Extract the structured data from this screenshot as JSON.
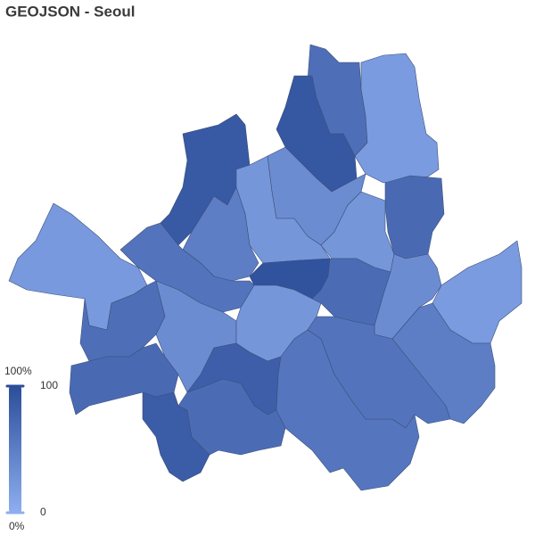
{
  "chart_data": {
    "type": "choropleth",
    "title": "GEOJSON - Seoul",
    "values": [
      65,
      20,
      90,
      88,
      35,
      25,
      70,
      25,
      50,
      60,
      95,
      68,
      35,
      20,
      22,
      65,
      35,
      25,
      70,
      82,
      85,
      68,
      58,
      60,
      50
    ],
    "color_range": [
      "#8eaef0",
      "#2c4d99"
    ],
    "legend": {
      "range": [
        0,
        100
      ],
      "ticks": [
        0,
        100
      ],
      "top_label": "100%",
      "bottom_label": "0%"
    }
  }
}
